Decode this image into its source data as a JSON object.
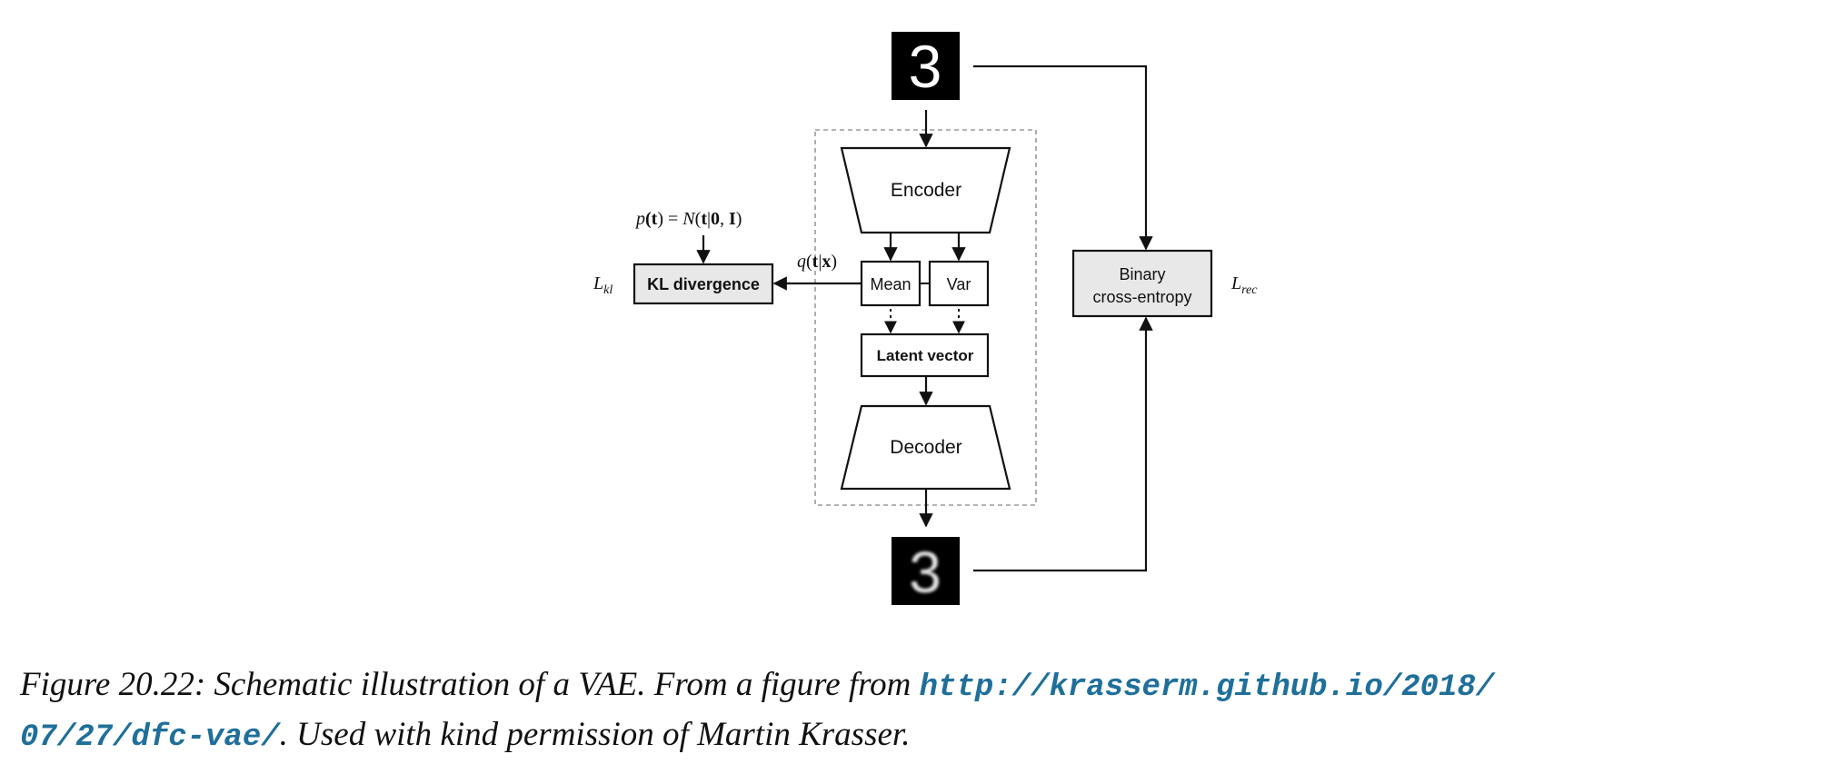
{
  "diagram": {
    "encoder_label": "Encoder",
    "decoder_label": "Decoder",
    "mean_label": "Mean",
    "var_label": "Var",
    "latent_label": "Latent vector",
    "kl_label": "KL divergence",
    "bce_label_1": "Binary",
    "bce_label_2": "cross-entropy",
    "input_digit": "3",
    "output_digit": "3",
    "prior": {
      "p": "p",
      "open": "(",
      "t": "t",
      "eq": ") = ",
      "N": "N",
      "args_open": "(",
      "t2": "t",
      "bar": "|",
      "zero": "0",
      "comma": ", ",
      "I": "I",
      "close": ")"
    },
    "posterior": {
      "q": "q",
      "open": "(",
      "t": "t",
      "bar": "|",
      "x": "x",
      "close": ")"
    },
    "l_kl": {
      "L": "L",
      "sub": "kl"
    },
    "l_rec": {
      "L": "L",
      "sub": "rec"
    },
    "colors": {
      "box_fill": "#e8e8e8",
      "stroke": "#111111",
      "dashed": "#9a9a9a"
    }
  },
  "caption": {
    "prefix": "Figure 20.22: Schematic illustration of a VAE. From a figure from ",
    "url_part1": "http://krasserm.github.io/2018/",
    "url_part2": "07/27/dfc-vae/",
    "suffix": ". Used with kind permission of Martin Krasser."
  }
}
